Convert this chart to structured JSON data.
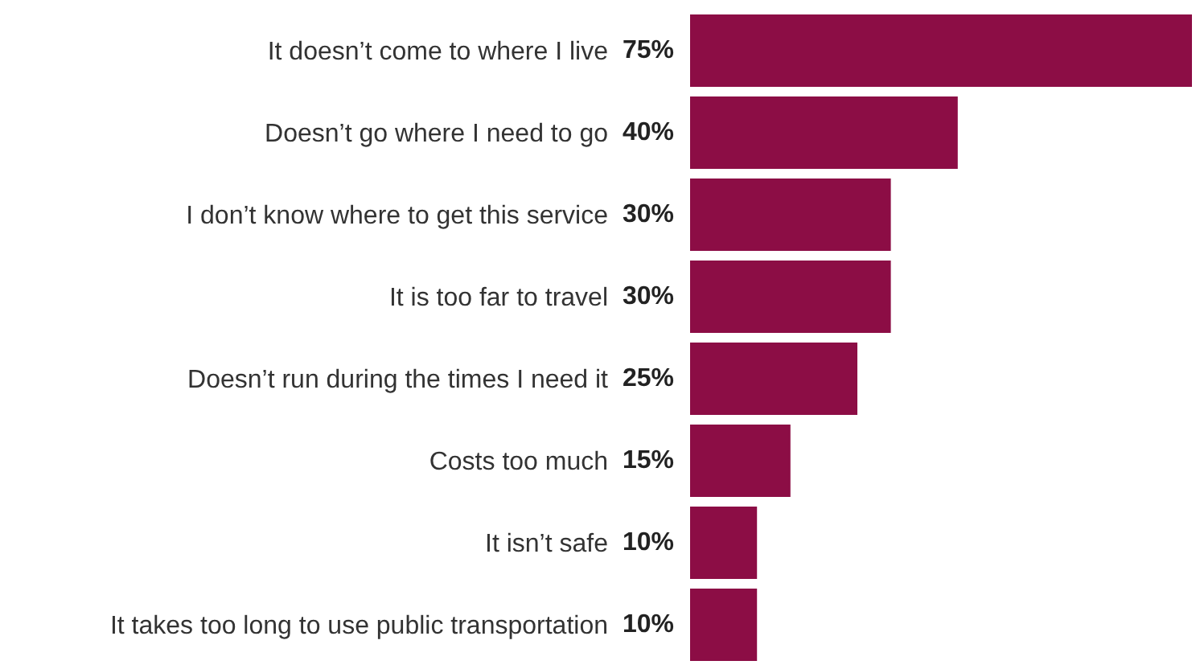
{
  "chart_data": {
    "type": "bar",
    "orientation": "horizontal",
    "categories": [
      "It doesn’t come to where I live",
      "Doesn’t go where I need to go",
      "I don’t know where to get this service",
      "It is too far to travel",
      "Doesn’t run during the times I need it",
      "Costs too much",
      "It isn’t safe",
      "It takes too long to use public transportation"
    ],
    "values": [
      75,
      40,
      30,
      30,
      25,
      15,
      10,
      10
    ],
    "value_labels": [
      "75%",
      "40%",
      "30%",
      "30%",
      "25%",
      "15%",
      "10%",
      "10%"
    ],
    "color": "#8c0d45"
  }
}
